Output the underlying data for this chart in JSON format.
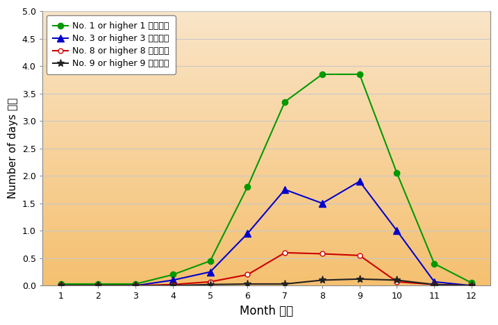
{
  "months": [
    1,
    2,
    3,
    4,
    5,
    6,
    7,
    8,
    9,
    10,
    11,
    12
  ],
  "no1": [
    0.03,
    0.03,
    0.03,
    0.2,
    0.45,
    1.8,
    3.35,
    3.85,
    3.85,
    2.05,
    0.4,
    0.05
  ],
  "no3": [
    0.0,
    0.0,
    0.0,
    0.1,
    0.25,
    0.95,
    1.75,
    1.5,
    1.9,
    1.0,
    0.07,
    0.0
  ],
  "no8": [
    0.0,
    0.0,
    0.0,
    0.02,
    0.07,
    0.2,
    0.6,
    0.58,
    0.55,
    0.07,
    0.02,
    0.0
  ],
  "no9": [
    0.0,
    0.0,
    0.0,
    0.0,
    0.02,
    0.03,
    0.03,
    0.1,
    0.12,
    0.1,
    0.02,
    0.0
  ],
  "color_no1": "#009900",
  "color_no3": "#0000cc",
  "color_no8": "#cc0000",
  "color_no9": "#222222",
  "label_no1": "No. 1 or higher 1 號或更高",
  "label_no3": "No. 3 or higher 3 號或更高",
  "label_no8": "No. 8 or higher 8 號或更高",
  "label_no9": "No. 9 or higher 9 號或更高",
  "xlabel": "Month 月份",
  "ylabel": "Number of days 日數",
  "ylim": [
    0.0,
    5.0
  ],
  "yticks": [
    0.0,
    0.5,
    1.0,
    1.5,
    2.0,
    2.5,
    3.0,
    3.5,
    4.0,
    4.5,
    5.0
  ],
  "bg_color_top": "#f5c070",
  "bg_color_bottom": "#fae5c8",
  "grid_color": "#c8c8c8",
  "fig_bg": "#ffffff"
}
